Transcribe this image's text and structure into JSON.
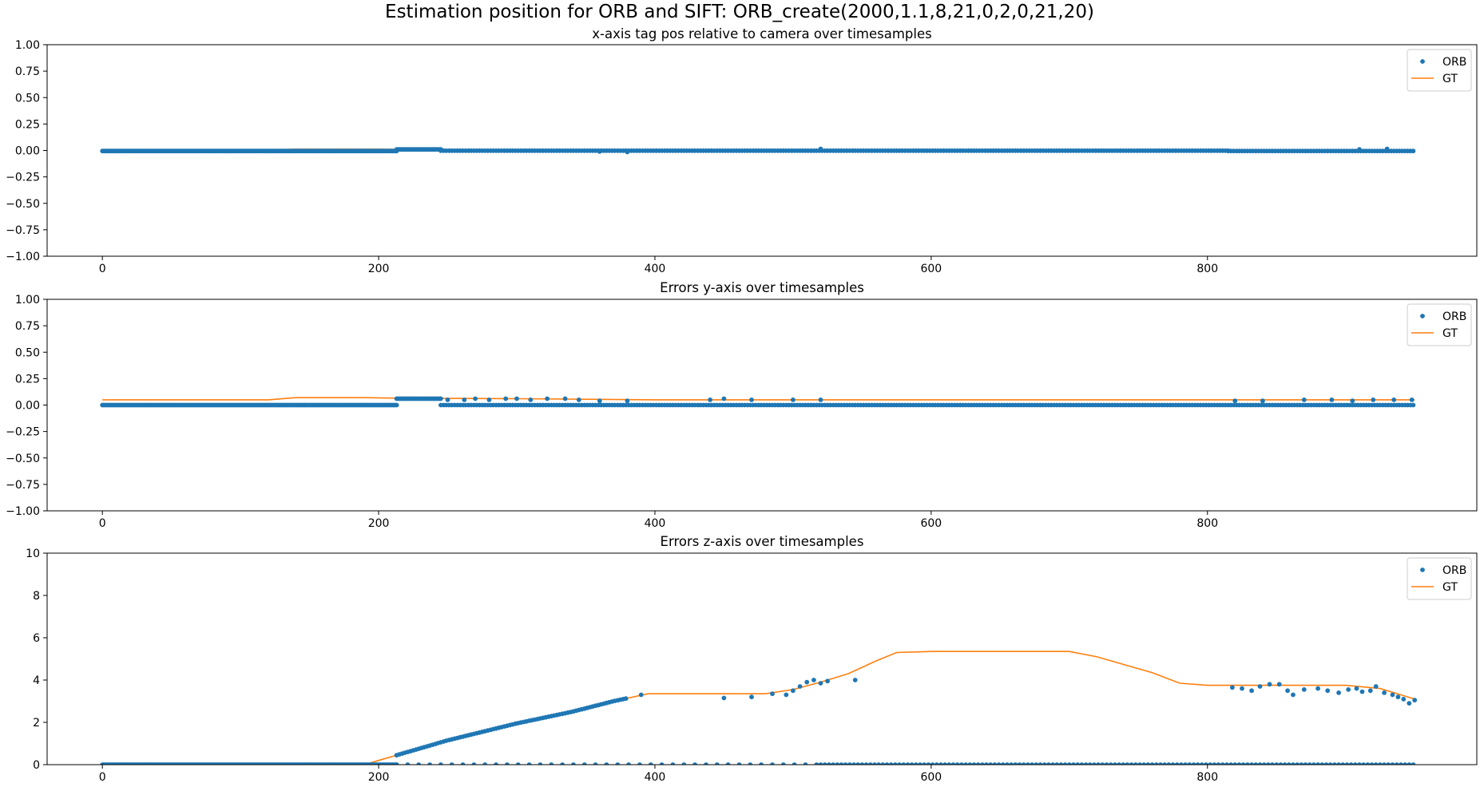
{
  "figure": {
    "suptitle": "Estimation position for ORB and SIFT: ORB_create(2000,1.1,8,21,0,2,0,21,20)"
  },
  "colors": {
    "orb": "#1f77b4",
    "gt": "#ff7f0e",
    "axis": "#000000",
    "legend_border": "#cccccc"
  },
  "chart_data": [
    {
      "type": "scatter+line",
      "title": "x-axis tag pos relative to camera over timesamples",
      "xlabel": "",
      "ylabel": "",
      "xlim": [
        -40,
        995
      ],
      "ylim": [
        -1.0,
        1.0
      ],
      "xticks": [
        "0",
        "200",
        "400",
        "600",
        "800"
      ],
      "xtick_values": [
        0,
        200,
        400,
        600,
        800
      ],
      "yticks": [
        "1.00",
        "0.75",
        "0.50",
        "0.25",
        "0.00",
        "−0.25",
        "−0.50",
        "−0.75",
        "−1.00"
      ],
      "ytick_values": [
        1.0,
        0.75,
        0.5,
        0.25,
        0.0,
        -0.25,
        -0.5,
        -0.75,
        -1.0
      ],
      "legend_placement": "upper right",
      "series": [
        {
          "name": "ORB",
          "kind": "markers",
          "segments": [
            {
              "x_start": 0,
              "x_end": 213,
              "step": 1,
              "y": -0.005
            },
            {
              "x_start": 213,
              "x_end": 245,
              "step": 1,
              "y": 0.01
            },
            {
              "x_start": 245,
              "x_end": 815,
              "step": 2,
              "y": -0.002
            },
            {
              "x_start": 815,
              "x_end": 950,
              "step": 2,
              "y": -0.005
            }
          ],
          "extra_points": [
            [
              360,
              -0.01
            ],
            [
              380,
              -0.015
            ],
            [
              520,
              0.015
            ],
            [
              910,
              0.01
            ],
            [
              930,
              0.015
            ]
          ]
        },
        {
          "name": "GT",
          "kind": "line",
          "points": [
            [
              0,
              0.005
            ],
            [
              120,
              0.005
            ],
            [
              140,
              0.012
            ],
            [
              200,
              0.012
            ],
            [
              215,
              0.01
            ],
            [
              245,
              0.008
            ],
            [
              400,
              0.005
            ],
            [
              800,
              0.005
            ],
            [
              950,
              0.005
            ]
          ]
        }
      ]
    },
    {
      "type": "scatter+line",
      "title": "Errors y-axis over timesamples",
      "xlabel": "",
      "ylabel": "",
      "xlim": [
        -40,
        995
      ],
      "ylim": [
        -1.0,
        1.0
      ],
      "xticks": [
        "0",
        "200",
        "400",
        "600",
        "800"
      ],
      "xtick_values": [
        0,
        200,
        400,
        600,
        800
      ],
      "yticks": [
        "1.00",
        "0.75",
        "0.50",
        "0.25",
        "0.00",
        "−0.25",
        "−0.50",
        "−0.75",
        "−1.00"
      ],
      "ytick_values": [
        1.0,
        0.75,
        0.5,
        0.25,
        0.0,
        -0.25,
        -0.5,
        -0.75,
        -1.0
      ],
      "legend_placement": "upper right",
      "series": [
        {
          "name": "ORB",
          "kind": "markers",
          "segments": [
            {
              "x_start": 0,
              "x_end": 213,
              "step": 1,
              "y": 0.0
            },
            {
              "x_start": 213,
              "x_end": 245,
              "step": 1,
              "y": 0.06
            },
            {
              "x_start": 245,
              "x_end": 950,
              "step": 2,
              "y": 0.0
            }
          ],
          "extra_points": [
            [
              250,
              0.05
            ],
            [
              262,
              0.05
            ],
            [
              270,
              0.06
            ],
            [
              280,
              0.05
            ],
            [
              292,
              0.06
            ],
            [
              300,
              0.06
            ],
            [
              310,
              0.05
            ],
            [
              322,
              0.06
            ],
            [
              335,
              0.06
            ],
            [
              345,
              0.05
            ],
            [
              360,
              0.04
            ],
            [
              380,
              0.04
            ],
            [
              440,
              0.05
            ],
            [
              450,
              0.06
            ],
            [
              470,
              0.05
            ],
            [
              500,
              0.05
            ],
            [
              520,
              0.05
            ],
            [
              820,
              0.04
            ],
            [
              840,
              0.04
            ],
            [
              870,
              0.05
            ],
            [
              890,
              0.05
            ],
            [
              905,
              0.04
            ],
            [
              920,
              0.05
            ],
            [
              935,
              0.05
            ],
            [
              948,
              0.05
            ]
          ]
        },
        {
          "name": "GT",
          "kind": "line",
          "points": [
            [
              0,
              0.05
            ],
            [
              120,
              0.05
            ],
            [
              140,
              0.07
            ],
            [
              190,
              0.07
            ],
            [
              215,
              0.065
            ],
            [
              300,
              0.06
            ],
            [
              400,
              0.05
            ],
            [
              800,
              0.05
            ],
            [
              950,
              0.05
            ]
          ]
        }
      ]
    },
    {
      "type": "scatter+line",
      "title": "Errors z-axis over timesamples",
      "xlabel": "",
      "ylabel": "",
      "xlim": [
        -40,
        995
      ],
      "ylim": [
        0,
        10
      ],
      "xticks": [
        "0",
        "200",
        "400",
        "600",
        "800"
      ],
      "xtick_values": [
        0,
        200,
        400,
        600,
        800
      ],
      "yticks": [
        "10",
        "8",
        "6",
        "4",
        "2",
        "0"
      ],
      "ytick_values": [
        10,
        8,
        6,
        4,
        2,
        0
      ],
      "legend_placement": "upper right",
      "series": [
        {
          "name": "ORB",
          "kind": "markers",
          "segments": [
            {
              "x_start": 0,
              "x_end": 213,
              "step": 1,
              "y": 0.0
            },
            {
              "x_start": 213,
              "x_end": 520,
              "step": 8,
              "y": 0.0
            },
            {
              "x_start": 520,
              "x_end": 950,
              "step": 3,
              "y": 0.0
            },
            {
              "x_start": 213,
              "x_end": 380,
              "step": 2,
              "y_from_gt": true
            }
          ],
          "extra_points": [
            [
              390,
              3.3
            ],
            [
              450,
              3.15
            ],
            [
              470,
              3.2
            ],
            [
              485,
              3.35
            ],
            [
              495,
              3.3
            ],
            [
              500,
              3.5
            ],
            [
              505,
              3.7
            ],
            [
              510,
              3.9
            ],
            [
              515,
              4.0
            ],
            [
              520,
              3.85
            ],
            [
              525,
              3.95
            ],
            [
              545,
              4.0
            ],
            [
              818,
              3.65
            ],
            [
              825,
              3.6
            ],
            [
              832,
              3.5
            ],
            [
              838,
              3.7
            ],
            [
              845,
              3.8
            ],
            [
              852,
              3.8
            ],
            [
              858,
              3.5
            ],
            [
              862,
              3.3
            ],
            [
              870,
              3.55
            ],
            [
              880,
              3.6
            ],
            [
              887,
              3.5
            ],
            [
              895,
              3.4
            ],
            [
              902,
              3.55
            ],
            [
              908,
              3.6
            ],
            [
              912,
              3.45
            ],
            [
              918,
              3.5
            ],
            [
              922,
              3.7
            ],
            [
              928,
              3.4
            ],
            [
              934,
              3.3
            ],
            [
              938,
              3.2
            ],
            [
              942,
              3.1
            ],
            [
              946,
              2.9
            ],
            [
              950,
              3.05
            ]
          ]
        },
        {
          "name": "GT",
          "kind": "line",
          "points": [
            [
              0,
              0.0
            ],
            [
              190,
              0.0
            ],
            [
              200,
              0.2
            ],
            [
              250,
              1.15
            ],
            [
              300,
              1.95
            ],
            [
              340,
              2.5
            ],
            [
              370,
              3.0
            ],
            [
              395,
              3.35
            ],
            [
              420,
              3.35
            ],
            [
              480,
              3.35
            ],
            [
              500,
              3.55
            ],
            [
              520,
              3.9
            ],
            [
              540,
              4.3
            ],
            [
              560,
              4.9
            ],
            [
              575,
              5.3
            ],
            [
              600,
              5.35
            ],
            [
              700,
              5.35
            ],
            [
              720,
              5.1
            ],
            [
              760,
              4.35
            ],
            [
              780,
              3.85
            ],
            [
              800,
              3.75
            ],
            [
              900,
              3.75
            ],
            [
              925,
              3.6
            ],
            [
              940,
              3.3
            ],
            [
              950,
              3.1
            ]
          ]
        }
      ]
    }
  ]
}
